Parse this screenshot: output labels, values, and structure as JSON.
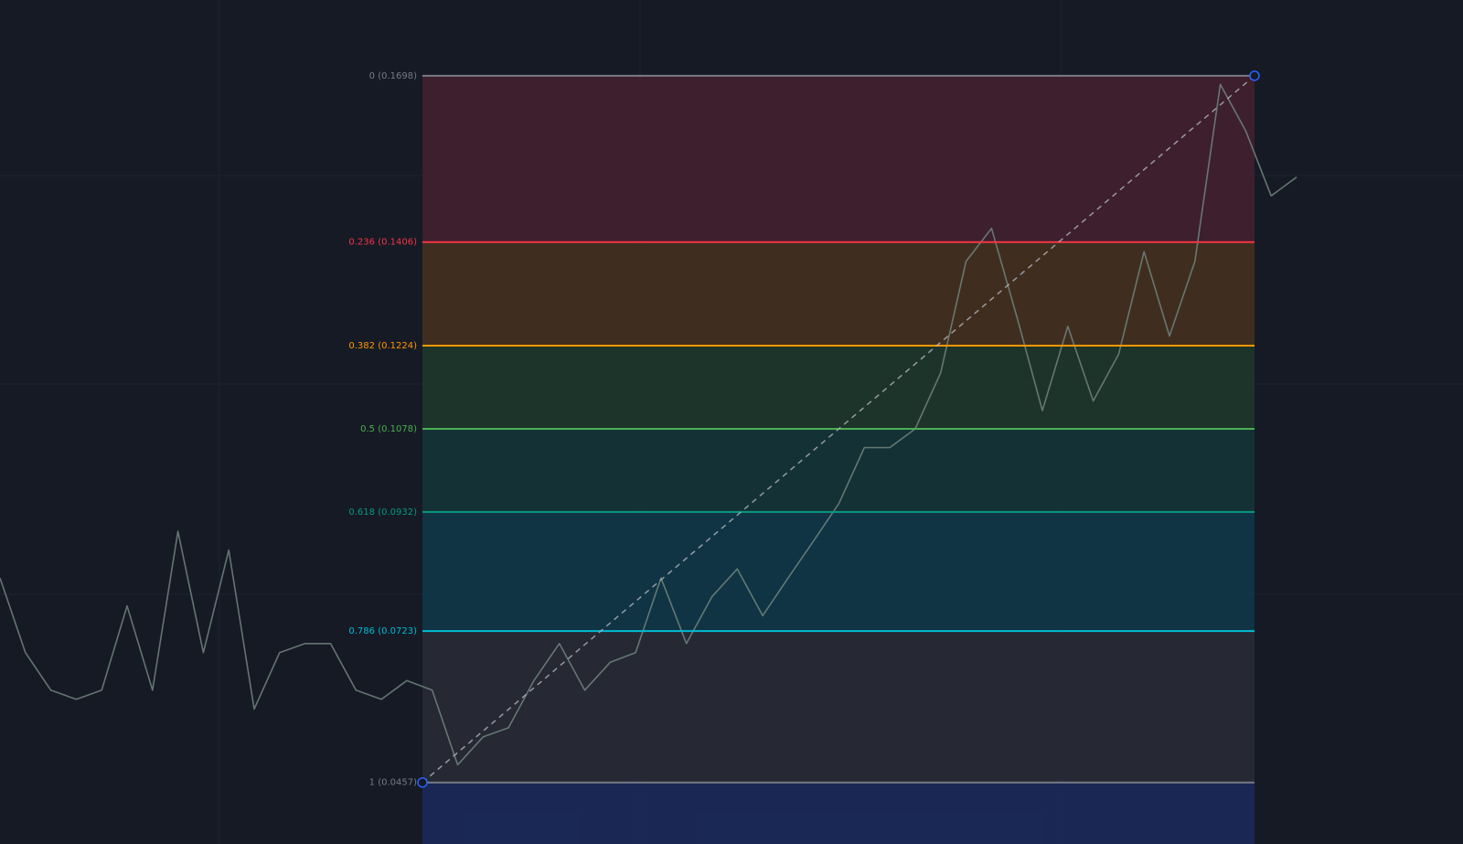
{
  "chart_data": {
    "type": "fibonacci",
    "ylim": [
      0.0349,
      0.1831
    ],
    "levels": [
      {
        "label": "0 (0.1698)",
        "value": 0.1698,
        "color": "#787b86",
        "fill": "#44212f"
      },
      {
        "label": "0.236 (0.1406)",
        "value": 0.1406,
        "color": "#f23645",
        "fill": "#46321f"
      },
      {
        "label": "0.382 (0.1224)",
        "value": 0.1224,
        "color": "#ff9800",
        "fill": "#1f3a2b"
      },
      {
        "label": "0.5 (0.1078)",
        "value": 0.1078,
        "color": "#4caf50",
        "fill": "#14363a"
      },
      {
        "label": "0.618 (0.0932)",
        "value": 0.0932,
        "color": "#089981",
        "fill": "#0f394a"
      },
      {
        "label": "0.786 (0.0723)",
        "value": 0.0723,
        "color": "#00bcd4",
        "fill": "#292c37"
      },
      {
        "label": "1 (0.0457)",
        "value": 0.0457,
        "color": "#787b86",
        "fill": "#1b2a5e"
      }
    ],
    "trend_color": "#b2b5be",
    "series": [
      {
        "color": "#6d7f7a",
        "values": [
          0.0816,
          0.0685,
          0.0619,
          0.0603,
          0.0619,
          0.0767,
          0.0619,
          0.0898,
          0.0685,
          0.0865,
          0.0586,
          0.0685,
          0.0701,
          0.0701,
          0.0619,
          0.0603,
          0.0636,
          0.0619,
          0.0488,
          0.0537,
          0.0553,
          0.0636,
          0.0701,
          0.0619,
          0.0668,
          0.0685,
          0.0816,
          0.0701,
          0.0783,
          0.0832,
          0.075,
          0.0816,
          0.0881,
          0.0947,
          0.1045,
          0.1045,
          0.1078,
          0.1176,
          0.1372,
          0.143,
          0.1274,
          0.111,
          0.1258,
          0.1127,
          0.1209,
          0.1389,
          0.1241,
          0.1372,
          0.1683,
          0.1601,
          0.1487,
          0.152
        ]
      }
    ]
  }
}
